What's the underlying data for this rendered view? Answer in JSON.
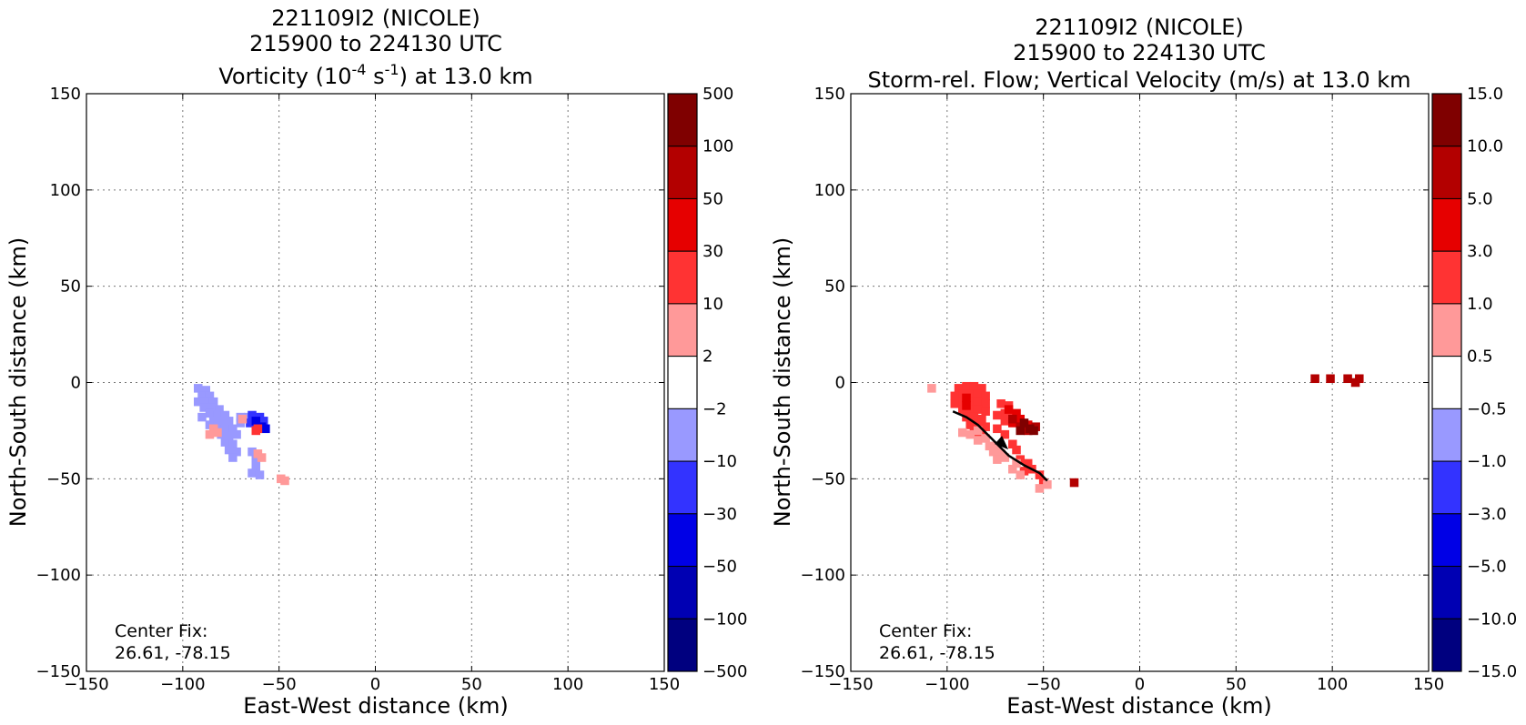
{
  "chart_data": [
    {
      "type": "heatmap",
      "title_lines": [
        "221109I2 (NICOLE)",
        "215900 to 224130 UTC"
      ],
      "title_field": {
        "pre": "Vorticity (10",
        "sup1": "-4",
        "mid": " s",
        "sup2": "-1",
        "post": ") at 13.0 km"
      },
      "xlabel": "East-West distance (km)",
      "ylabel": "North-South distance (km)",
      "xlim": [
        -150,
        150
      ],
      "ylim": [
        -150,
        150
      ],
      "xticks": [
        -150,
        -100,
        -50,
        0,
        50,
        100,
        150
      ],
      "yticks": [
        -150,
        -100,
        -50,
        0,
        50,
        100,
        150
      ],
      "xtick_labels": [
        "−150",
        "−100",
        "−50",
        "0",
        "50",
        "100",
        "150"
      ],
      "ytick_labels": [
        "−150",
        "−100",
        "−50",
        "0",
        "50",
        "100",
        "150"
      ],
      "grid": true,
      "annotation": [
        "Center Fix:",
        "26.61, -78.15"
      ],
      "colorbar": {
        "labels": [
          "500",
          "100",
          "50",
          "30",
          "10",
          "2",
          "−2",
          "−10",
          "−30",
          "−50",
          "−100",
          "−500"
        ],
        "colors": [
          "#7f0000",
          "#b30000",
          "#e60000",
          "#ff3333",
          "#ff9999",
          "#ffffff",
          "#9999ff",
          "#3333ff",
          "#0000e6",
          "#0000b3",
          "#00007f"
        ]
      },
      "regions": [
        {
          "level": "-2 to -10",
          "color": "#9999ff",
          "cells": [
            [
              -92,
              -3
            ],
            [
              -88,
              -4
            ],
            [
              -90,
              -7
            ],
            [
              -86,
              -7
            ],
            [
              -92,
              -10
            ],
            [
              -88,
              -10
            ],
            [
              -84,
              -10
            ],
            [
              -89,
              -13
            ],
            [
              -85,
              -13
            ],
            [
              -81,
              -14
            ],
            [
              -86,
              -16
            ],
            [
              -82,
              -17
            ],
            [
              -78,
              -17
            ],
            [
              -90,
              -18
            ],
            [
              -84,
              -20
            ],
            [
              -80,
              -20
            ],
            [
              -76,
              -20
            ],
            [
              -86,
              -22
            ],
            [
              -82,
              -23
            ],
            [
              -78,
              -24
            ],
            [
              -74,
              -24
            ],
            [
              -70,
              -21
            ],
            [
              -66,
              -18
            ],
            [
              -80,
              -27
            ],
            [
              -76,
              -28
            ],
            [
              -72,
              -27
            ],
            [
              -78,
              -31
            ],
            [
              -74,
              -32
            ],
            [
              -76,
              -35
            ],
            [
              -72,
              -36
            ],
            [
              -74,
              -39
            ],
            [
              -64,
              -36
            ],
            [
              -62,
              -40
            ],
            [
              -62,
              -44
            ],
            [
              -64,
              -47
            ],
            [
              -60,
              -48
            ],
            [
              -70,
              -18
            ]
          ]
        },
        {
          "level": "-10 to -30",
          "color": "#3333ff",
          "cells": [
            [
              -64,
              -17
            ],
            [
              -60,
              -18
            ],
            [
              -65,
              -21
            ],
            [
              -62,
              -22
            ],
            [
              -58,
              -20
            ]
          ]
        },
        {
          "level": "-30 to -50",
          "color": "#0000e6",
          "cells": [
            [
              -62,
              -20
            ],
            [
              -59,
              -23
            ],
            [
              -57,
              -24
            ]
          ]
        },
        {
          "level": "2 to 10",
          "color": "#ff9999",
          "cells": [
            [
              -84,
              -24
            ],
            [
              -82,
              -26
            ],
            [
              -86,
              -27
            ],
            [
              -69,
              -19
            ],
            [
              -61,
              -37
            ],
            [
              -59,
              -39
            ],
            [
              -49,
              -50
            ],
            [
              -47,
              -51
            ]
          ]
        },
        {
          "level": "10 to 30",
          "color": "#ff3333",
          "cells": [
            [
              -62,
              -25
            ],
            [
              -61,
              -24
            ]
          ]
        }
      ]
    },
    {
      "type": "heatmap",
      "title_lines": [
        "221109I2 (NICOLE)",
        "215900 to 224130 UTC",
        "Storm-rel. Flow; Vertical Velocity (m/s) at 13.0 km"
      ],
      "xlabel": "East-West distance (km)",
      "ylabel": "North-South distance (km)",
      "xlim": [
        -150,
        150
      ],
      "ylim": [
        -150,
        150
      ],
      "xticks": [
        -150,
        -100,
        -50,
        0,
        50,
        100,
        150
      ],
      "yticks": [
        -150,
        -100,
        -50,
        0,
        50,
        100,
        150
      ],
      "xtick_labels": [
        "−150",
        "−100",
        "−50",
        "0",
        "50",
        "100",
        "150"
      ],
      "ytick_labels": [
        "−150",
        "−100",
        "−50",
        "0",
        "50",
        "100",
        "150"
      ],
      "grid": true,
      "annotation": [
        "Center Fix:",
        "26.61, -78.15"
      ],
      "colorbar": {
        "labels": [
          "15.0",
          "10.0",
          "5.0",
          "3.0",
          "1.0",
          "0.5",
          "−0.5",
          "−1.0",
          "−3.0",
          "−5.0",
          "−10.0",
          "−15.0"
        ],
        "colors": [
          "#7f0000",
          "#b30000",
          "#e60000",
          "#ff3333",
          "#ff9999",
          "#ffffff",
          "#9999ff",
          "#3333ff",
          "#0000e6",
          "#0000b3",
          "#00007f"
        ]
      },
      "regions": [
        {
          "level": "1.0 to 3.0",
          "color": "#ff3333",
          "cells": [
            [
              -94,
              -3
            ],
            [
              -90,
              -2
            ],
            [
              -86,
              -2
            ],
            [
              -82,
              -3
            ],
            [
              -96,
              -7
            ],
            [
              -92,
              -6
            ],
            [
              -88,
              -6
            ],
            [
              -84,
              -6
            ],
            [
              -80,
              -7
            ],
            [
              -96,
              -11
            ],
            [
              -92,
              -10
            ],
            [
              -88,
              -10
            ],
            [
              -84,
              -10
            ],
            [
              -80,
              -11
            ],
            [
              -92,
              -14
            ],
            [
              -88,
              -14
            ],
            [
              -84,
              -14
            ],
            [
              -80,
              -15
            ],
            [
              -90,
              -18
            ],
            [
              -86,
              -18
            ],
            [
              -82,
              -19
            ],
            [
              -88,
              -22
            ],
            [
              -84,
              -22
            ],
            [
              -80,
              -23
            ],
            [
              -86,
              -26
            ],
            [
              -82,
              -27
            ],
            [
              -72,
              -11
            ],
            [
              -68,
              -12
            ],
            [
              -70,
              -16
            ],
            [
              -74,
              -17
            ],
            [
              -66,
              -18
            ],
            [
              -70,
              -20
            ],
            [
              -62,
              -21
            ],
            [
              -74,
              -24
            ],
            [
              -70,
              -27
            ],
            [
              -66,
              -32
            ],
            [
              -64,
              -35
            ],
            [
              -62,
              -40
            ],
            [
              -58,
              -42
            ],
            [
              -56,
              -45
            ],
            [
              -60,
              -46
            ],
            [
              -52,
              -48
            ],
            [
              -50,
              -52
            ]
          ]
        },
        {
          "level": "0.5 to 1.0",
          "color": "#ff9999",
          "cells": [
            [
              -108,
              -3
            ],
            [
              -92,
              -26
            ],
            [
              -88,
              -27
            ],
            [
              -84,
              -30
            ],
            [
              -80,
              -29
            ],
            [
              -78,
              -33
            ],
            [
              -74,
              -33
            ],
            [
              -76,
              -36
            ],
            [
              -72,
              -37
            ],
            [
              -74,
              -40
            ],
            [
              -70,
              -39
            ],
            [
              -64,
              -42
            ],
            [
              -66,
              -45
            ],
            [
              -62,
              -48
            ],
            [
              -52,
              -55
            ],
            [
              -48,
              -53
            ],
            [
              -84,
              -25
            ]
          ]
        },
        {
          "level": "3.0 to 5.0",
          "color": "#e60000",
          "cells": [
            [
              -68,
              -14
            ],
            [
              -64,
              -16
            ],
            [
              -62,
              -19
            ],
            [
              -66,
              -21
            ],
            [
              -58,
              -22
            ],
            [
              -90,
              -12
            ],
            [
              -90,
              -8
            ]
          ]
        },
        {
          "level": "5.0 to 10.0",
          "color": "#b30000",
          "cells": [
            [
              -66,
              -19
            ],
            [
              -62,
              -23
            ],
            [
              -58,
              -25
            ],
            [
              -54,
              -23
            ],
            [
              -34,
              -52
            ],
            [
              91,
              2
            ],
            [
              99,
              2
            ],
            [
              108,
              2
            ],
            [
              112,
              0
            ],
            [
              114,
              2
            ]
          ]
        },
        {
          "level": "10.0 to 15.0",
          "color": "#7f0000",
          "cells": [
            [
              -60,
              -21
            ],
            [
              -57,
              -24
            ],
            [
              -55,
              -25
            ],
            [
              -62,
              -25
            ]
          ]
        }
      ],
      "flow_line": {
        "x": [
          -97,
          -90,
          -84,
          -78,
          -74,
          -68,
          -60,
          -52,
          -48
        ],
        "y": [
          -15,
          -18,
          -22,
          -28,
          -32,
          -38,
          -43,
          -47,
          -51
        ]
      },
      "flow_arrow": {
        "x": -72,
        "y": -31
      }
    }
  ]
}
